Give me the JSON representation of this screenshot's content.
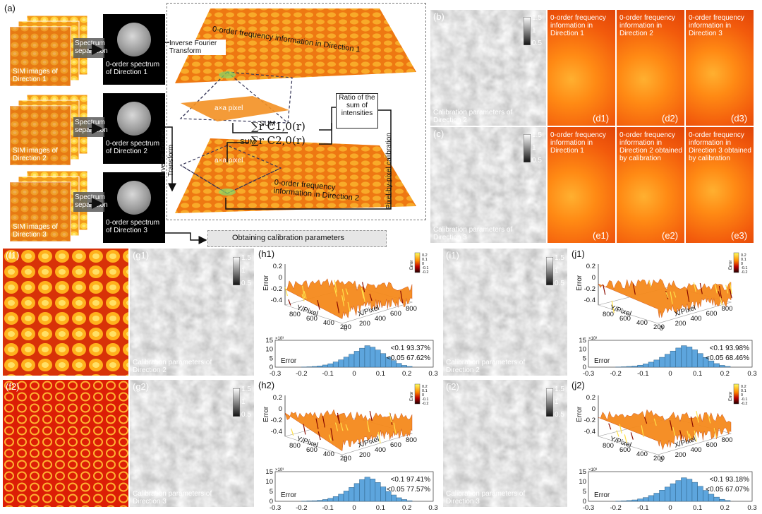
{
  "panel_a": {
    "label": "(a)",
    "spectrum_separation": "Spectrum separation",
    "rows": [
      {
        "sim_label": "SIM images of Direction 1",
        "spectrum_label": "0-order spectrum of Direction 1"
      },
      {
        "sim_label": "SIM images of Direction 2",
        "spectrum_label": "0-order spectrum of Direction 2"
      },
      {
        "sim_label": "SIM images of Direction 3",
        "spectrum_label": "0-order spectrum of Direction 3"
      }
    ],
    "inverse_fourier_1": "Inverse Fourier Transform",
    "inverse_fourier_2": "Inverse Fourier Transform",
    "plane1_label": "0-order frequency information in Direction 1",
    "plane2_label": "0-order frequency information in Direction 2",
    "sum1": "SUM",
    "sum2": "SUM",
    "formula1": "∑r C1,0(r)",
    "formula2": "∑r C2,0(r)",
    "pixel_label1": "a×a pixel",
    "pixel_label2": "a×a pixel",
    "ratio_box": "Ratio of the sum of intensities",
    "pixel_calibration": "Pixel-by-pixel calibration",
    "obtaining": "Obtaining calibration parameters"
  },
  "panel_b": {
    "label": "(b)",
    "caption": "Calibration parameters of Direction 2",
    "cb_ticks": [
      "1.5",
      "1",
      "0.5"
    ]
  },
  "panel_c": {
    "label": "(c)",
    "caption": "Calibration parameters of Direction 3",
    "cb_ticks": [
      "1.5",
      "1",
      "0.5"
    ]
  },
  "panel_d": [
    {
      "label": "(d1)",
      "text": "0-order frequency information in Direction 1"
    },
    {
      "label": "(d2)",
      "text": "0-order frequency information in Direction 2"
    },
    {
      "label": "(d3)",
      "text": "0-order frequency information in Direction 3"
    }
  ],
  "panel_e": [
    {
      "label": "(e1)",
      "text": "0-order frequency information in Direction 1"
    },
    {
      "label": "(e2)",
      "text": "0-order frequency information in Direction 2 obtained by calibration"
    },
    {
      "label": "(e3)",
      "text": "0-order frequency information in Direction 3 obtained by calibration"
    }
  ],
  "panel_f": [
    {
      "label": "(f1)"
    },
    {
      "label": "(f2)"
    }
  ],
  "panel_g": [
    {
      "label": "(g1)",
      "caption": "Calibration parameters of Direction 2",
      "cb_ticks": [
        "1.5",
        "1",
        "0.5"
      ]
    },
    {
      "label": "(g2)",
      "caption": "Calibration parameters of Direction 3",
      "cb_ticks": [
        "1.5",
        "1",
        "0.5"
      ]
    }
  ],
  "panel_i": [
    {
      "label": "(i1)",
      "caption": "Calibration parameters of Direction 2",
      "cb_ticks": [
        "1.5",
        "1",
        "0.5"
      ]
    },
    {
      "label": "(i2)",
      "caption": "Calibration parameters of Direction 3",
      "cb_ticks": [
        "1.5",
        "1",
        "0.5"
      ]
    }
  ],
  "surface_common": {
    "zlabel": "Error",
    "ylabel": "Y/Pixel",
    "xlabel": "X/Pixel",
    "z_ticks": [
      "0.2",
      "0",
      "-0.2",
      "-0.4"
    ],
    "y_ticks": [
      "800",
      "600",
      "400",
      "200"
    ],
    "x_ticks": [
      "0",
      "200",
      "400",
      "600",
      "800"
    ],
    "cb_title": "Error",
    "cb_ticks": [
      "0.2",
      "0.1",
      "0",
      "-0.1",
      "-0.2"
    ]
  },
  "surfaces": [
    {
      "label": "(h1)"
    },
    {
      "label": "(h2)"
    },
    {
      "label": "(j1)"
    },
    {
      "label": "(j2)"
    }
  ],
  "chart_data": [
    {
      "type": "bar",
      "panel": "h1",
      "xlabel": "Error",
      "xlim": [
        -0.3,
        0.3
      ],
      "x_ticks": [
        "-0.3",
        "-0.2",
        "-0.1",
        "0",
        "0.1",
        "0.2",
        "0.3"
      ],
      "y_ticks": [
        "15",
        "10",
        "5",
        "0"
      ],
      "y_exponent": "×10³",
      "bins": [
        -0.19,
        -0.17,
        -0.15,
        -0.13,
        -0.11,
        -0.09,
        -0.07,
        -0.05,
        -0.03,
        -0.01,
        0.01,
        0.03,
        0.05,
        0.07,
        0.09,
        0.11,
        0.13,
        0.15,
        0.17,
        0.19,
        0.21
      ],
      "values": [
        0.1,
        0.2,
        0.4,
        0.7,
        1.2,
        1.9,
        2.9,
        4.1,
        5.6,
        7.2,
        8.9,
        10.6,
        12.0,
        11.2,
        9.6,
        7.6,
        5.5,
        3.7,
        2.1,
        1.0,
        0.4
      ],
      "stats": [
        "<0.1  93.37%",
        "<0.05  67.62%"
      ]
    },
    {
      "type": "bar",
      "panel": "h2",
      "xlabel": "Error",
      "xlim": [
        -0.3,
        0.3
      ],
      "x_ticks": [
        "-0.3",
        "-0.2",
        "-0.1",
        "0",
        "0.1",
        "0.2",
        "0.3"
      ],
      "y_ticks": [
        "15",
        "10",
        "5",
        "0"
      ],
      "y_exponent": "×10³",
      "bins": [
        -0.19,
        -0.17,
        -0.15,
        -0.13,
        -0.11,
        -0.09,
        -0.07,
        -0.05,
        -0.03,
        -0.01,
        0.01,
        0.03,
        0.05,
        0.07,
        0.09,
        0.11,
        0.13,
        0.15,
        0.17,
        0.19,
        0.21
      ],
      "values": [
        0.1,
        0.2,
        0.3,
        0.5,
        0.9,
        1.5,
        2.4,
        3.6,
        5.2,
        7.0,
        9.0,
        11.0,
        12.2,
        11.3,
        9.5,
        7.3,
        5.0,
        3.2,
        1.8,
        0.9,
        0.3
      ],
      "stats": [
        "<0.1  97.41%",
        "<0.05  77.57%"
      ]
    },
    {
      "type": "bar",
      "panel": "j1",
      "xlabel": "Error",
      "xlim": [
        -0.3,
        0.3
      ],
      "x_ticks": [
        "-0.3",
        "-0.2",
        "-0.1",
        "0",
        "0.1",
        "0.2",
        "0.3"
      ],
      "y_ticks": [
        "15",
        "10",
        "5",
        "0"
      ],
      "y_exponent": "×10³",
      "bins": [
        -0.19,
        -0.17,
        -0.15,
        -0.13,
        -0.11,
        -0.09,
        -0.07,
        -0.05,
        -0.03,
        -0.01,
        0.01,
        0.03,
        0.05,
        0.07,
        0.09,
        0.11,
        0.13,
        0.15,
        0.17,
        0.19,
        0.21
      ],
      "values": [
        0.1,
        0.2,
        0.4,
        0.6,
        1.1,
        1.8,
        2.8,
        4.0,
        5.5,
        7.2,
        9.0,
        10.7,
        12.0,
        11.3,
        9.7,
        7.6,
        5.4,
        3.5,
        2.0,
        1.0,
        0.4
      ],
      "stats": [
        "<0.1  93.98%",
        "<0.05  68.46%"
      ]
    },
    {
      "type": "bar",
      "panel": "j2",
      "xlabel": "Error",
      "xlim": [
        -0.3,
        0.3
      ],
      "x_ticks": [
        "-0.3",
        "-0.2",
        "-0.1",
        "0",
        "0.1",
        "0.2",
        "0.3"
      ],
      "y_ticks": [
        "15",
        "10",
        "5",
        "0"
      ],
      "y_exponent": "×10³",
      "bins": [
        -0.19,
        -0.17,
        -0.15,
        -0.13,
        -0.11,
        -0.09,
        -0.07,
        -0.05,
        -0.03,
        -0.01,
        0.01,
        0.03,
        0.05,
        0.07,
        0.09,
        0.11,
        0.13,
        0.15,
        0.17,
        0.19,
        0.21
      ],
      "values": [
        0.1,
        0.2,
        0.4,
        0.7,
        1.2,
        1.9,
        2.9,
        4.1,
        5.6,
        7.2,
        8.9,
        10.5,
        11.9,
        11.2,
        9.6,
        7.6,
        5.5,
        3.6,
        2.1,
        1.0,
        0.4
      ],
      "stats": [
        "<0.1  93.18%",
        "<0.05  67.07%"
      ]
    }
  ]
}
